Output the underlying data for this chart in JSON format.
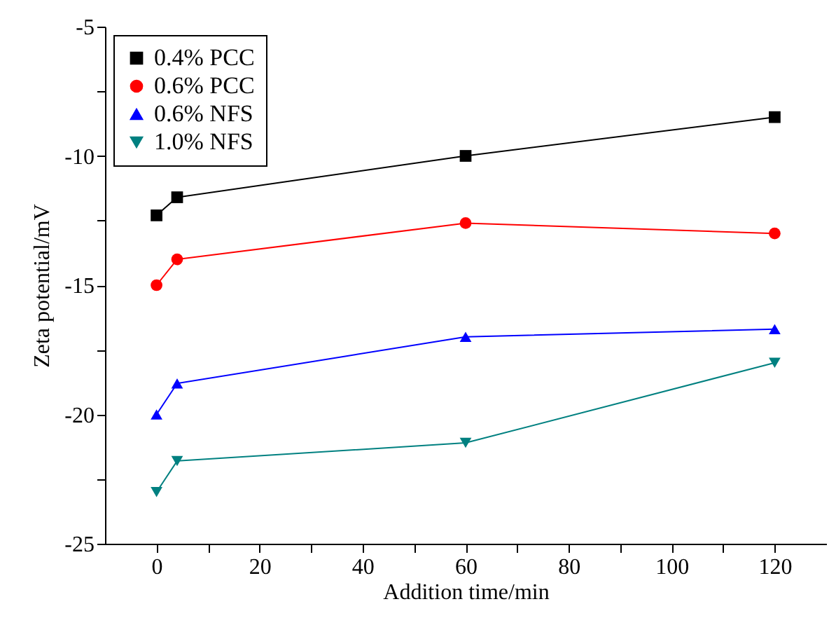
{
  "chart_data": {
    "type": "line",
    "xlabel": "Addition time/min",
    "ylabel": "Zeta potential/mV",
    "x": [
      0,
      4,
      60,
      120
    ],
    "series": [
      {
        "name": "0.4% PCC",
        "color": "#000000",
        "marker": "square",
        "values": [
          -12.3,
          -11.6,
          -10.0,
          -8.5
        ]
      },
      {
        "name": "0.6% PCC",
        "color": "#ff0000",
        "marker": "circle",
        "values": [
          -15.0,
          -14.0,
          -12.6,
          -13.0
        ]
      },
      {
        "name": "0.6% NFS",
        "color": "#0000ff",
        "marker": "triangle",
        "values": [
          -20.0,
          -18.8,
          -17.0,
          -16.7
        ]
      },
      {
        "name": "1.0% NFS",
        "color": "#008080",
        "marker": "triangle-down",
        "values": [
          -23.0,
          -21.8,
          -21.1,
          -18.0
        ]
      }
    ],
    "xlim": [
      -10,
      130
    ],
    "xticks": [
      0,
      {
        "value": 10,
        "label": null
      },
      20,
      {
        "value": 30,
        "label": null
      },
      40,
      {
        "value": 50,
        "label": null
      },
      60,
      {
        "value": 70,
        "label": null
      },
      80,
      {
        "value": 90,
        "label": null
      },
      100,
      {
        "value": 110,
        "label": null
      },
      120
    ],
    "ylim": [
      -25,
      -5
    ],
    "yticks": [
      -25,
      {
        "value": -22.5,
        "label": null
      },
      -20,
      {
        "value": -17.5,
        "label": null
      },
      -15,
      {
        "value": -12.5,
        "label": null
      },
      -10,
      {
        "value": -7.5,
        "label": null
      },
      -5
    ],
    "grid": false,
    "legend": "top left",
    "line_style": "solid"
  }
}
